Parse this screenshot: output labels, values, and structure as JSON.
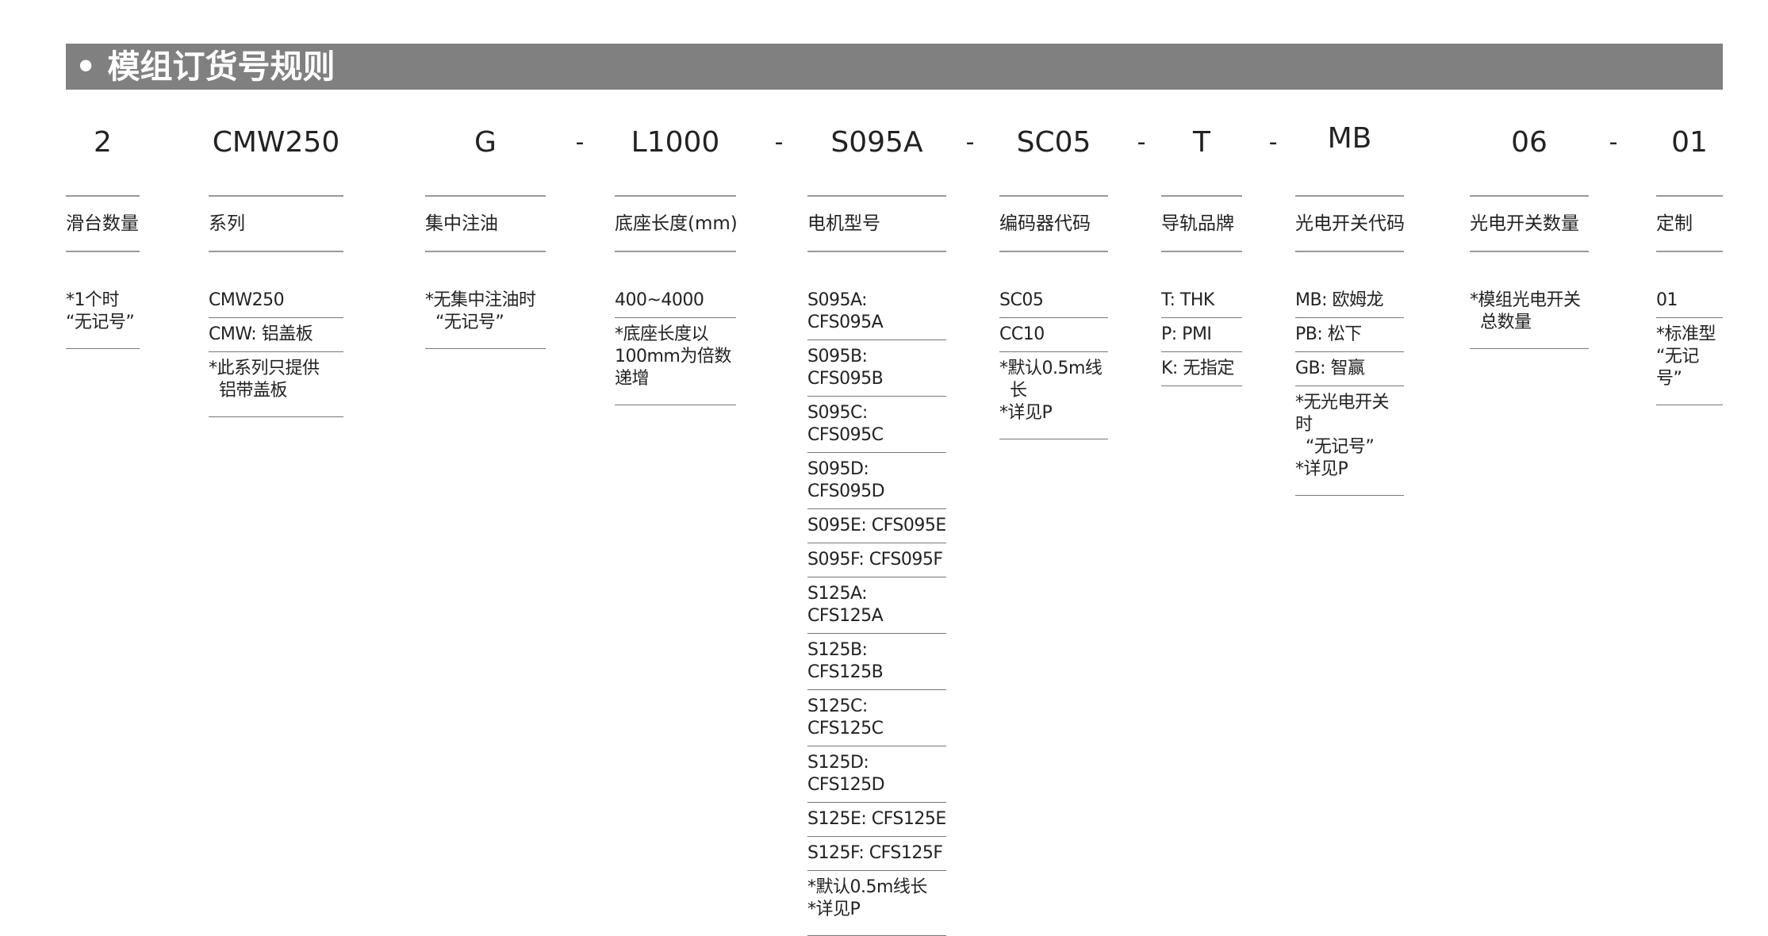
{
  "title": "• 模组订货号规则",
  "codes": [
    "2",
    "CMW250",
    "G",
    "L1000",
    "S095A",
    "SC05",
    "T",
    "MB",
    "06",
    "01"
  ],
  "separator": "-",
  "columns": [
    {
      "header": "滑台数量",
      "items": [
        {
          "text": "*1个时\n“无记号”",
          "note": true
        }
      ]
    },
    {
      "header": "系列",
      "items": [
        {
          "text": "CMW250"
        },
        {
          "text": "CMW: 铝盖板"
        },
        {
          "text": "*此系列只提供\n  铝带盖板",
          "note": true
        }
      ]
    },
    {
      "header": "集中注油",
      "items": [
        {
          "text": "*无集中注油时\n  “无记号”",
          "note": true
        }
      ]
    },
    {
      "header": "底座长度(mm)",
      "items": [
        {
          "text": "400~4000"
        },
        {
          "text": "*底座长度以\n100mm为倍数\n递增",
          "note": true
        }
      ]
    },
    {
      "header": "电机型号",
      "items": [
        {
          "text": "S095A: CFS095A"
        },
        {
          "text": "S095B: CFS095B"
        },
        {
          "text": "S095C: CFS095C"
        },
        {
          "text": "S095D: CFS095D"
        },
        {
          "text": "S095E: CFS095E"
        },
        {
          "text": "S095F: CFS095F"
        },
        {
          "text": "S125A: CFS125A"
        },
        {
          "text": "S125B: CFS125B"
        },
        {
          "text": "S125C: CFS125C"
        },
        {
          "text": "S125D: CFS125D"
        },
        {
          "text": "S125E: CFS125E"
        },
        {
          "text": "S125F: CFS125F"
        },
        {
          "text": "*默认0.5m线长\n*详见P",
          "note": true
        }
      ]
    },
    {
      "header": "编码器代码",
      "items": [
        {
          "text": "SC05"
        },
        {
          "text": "CC10"
        },
        {
          "text": "*默认0.5m线\n  长\n*详见P",
          "note": true
        }
      ]
    },
    {
      "header": "导轨品牌",
      "items": [
        {
          "text": "T: THK"
        },
        {
          "text": "P: PMI"
        },
        {
          "text": "K: 无指定"
        }
      ]
    },
    {
      "header": "光电开关代码",
      "items": [
        {
          "text": "MB: 欧姆龙"
        },
        {
          "text": "PB: 松下"
        },
        {
          "text": "GB: 智赢"
        },
        {
          "text": "*无光电开关时\n  “无记号”\n*详见P\n",
          "note": true
        }
      ]
    },
    {
      "header": "光电开关数量",
      "items": [
        {
          "text": "*模组光电开关\n  总数量",
          "note": true
        }
      ]
    },
    {
      "header": "定制",
      "items": [
        {
          "text": "01"
        },
        {
          "text": "*标准型\n“无记号”",
          "note": true
        }
      ]
    }
  ]
}
